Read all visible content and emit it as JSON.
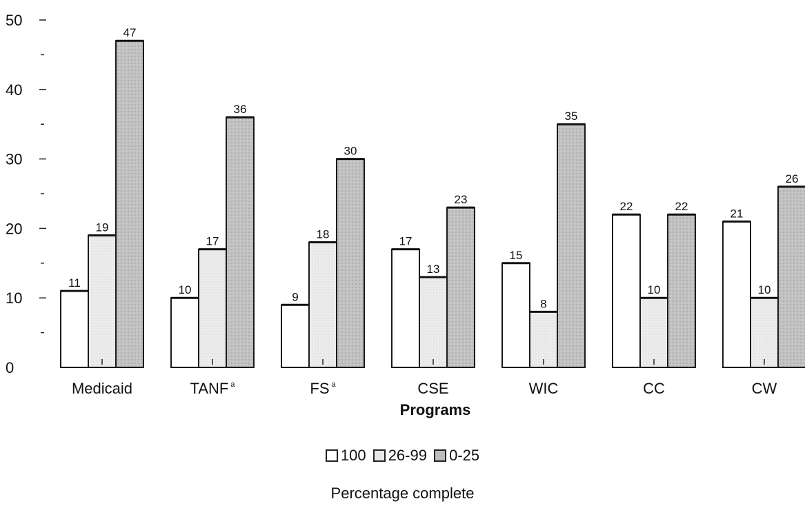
{
  "chart_data": {
    "type": "bar",
    "ylim": [
      0,
      50
    ],
    "yticks": [
      "0",
      "10",
      "20",
      "30",
      "40",
      "50"
    ],
    "xlabel": "Programs",
    "categories": [
      "Medicaid",
      "TANF",
      "FS",
      "CSE",
      "WIC",
      "CC",
      "CW"
    ],
    "category_superscripts": [
      "",
      "a",
      "a",
      "",
      "",
      "",
      ""
    ],
    "series": [
      {
        "name": "100",
        "values": [
          11,
          10,
          9,
          17,
          15,
          22,
          21
        ],
        "color": "#ffffff"
      },
      {
        "name": "26-99",
        "values": [
          19,
          17,
          18,
          13,
          8,
          10,
          10
        ],
        "color": "#e8e8e8"
      },
      {
        "name": "0-25",
        "values": [
          47,
          36,
          30,
          23,
          35,
          22,
          26
        ],
        "color": "#bdbdbd"
      }
    ],
    "legend_title": "Percentage complete",
    "legend_position": "bottom"
  }
}
